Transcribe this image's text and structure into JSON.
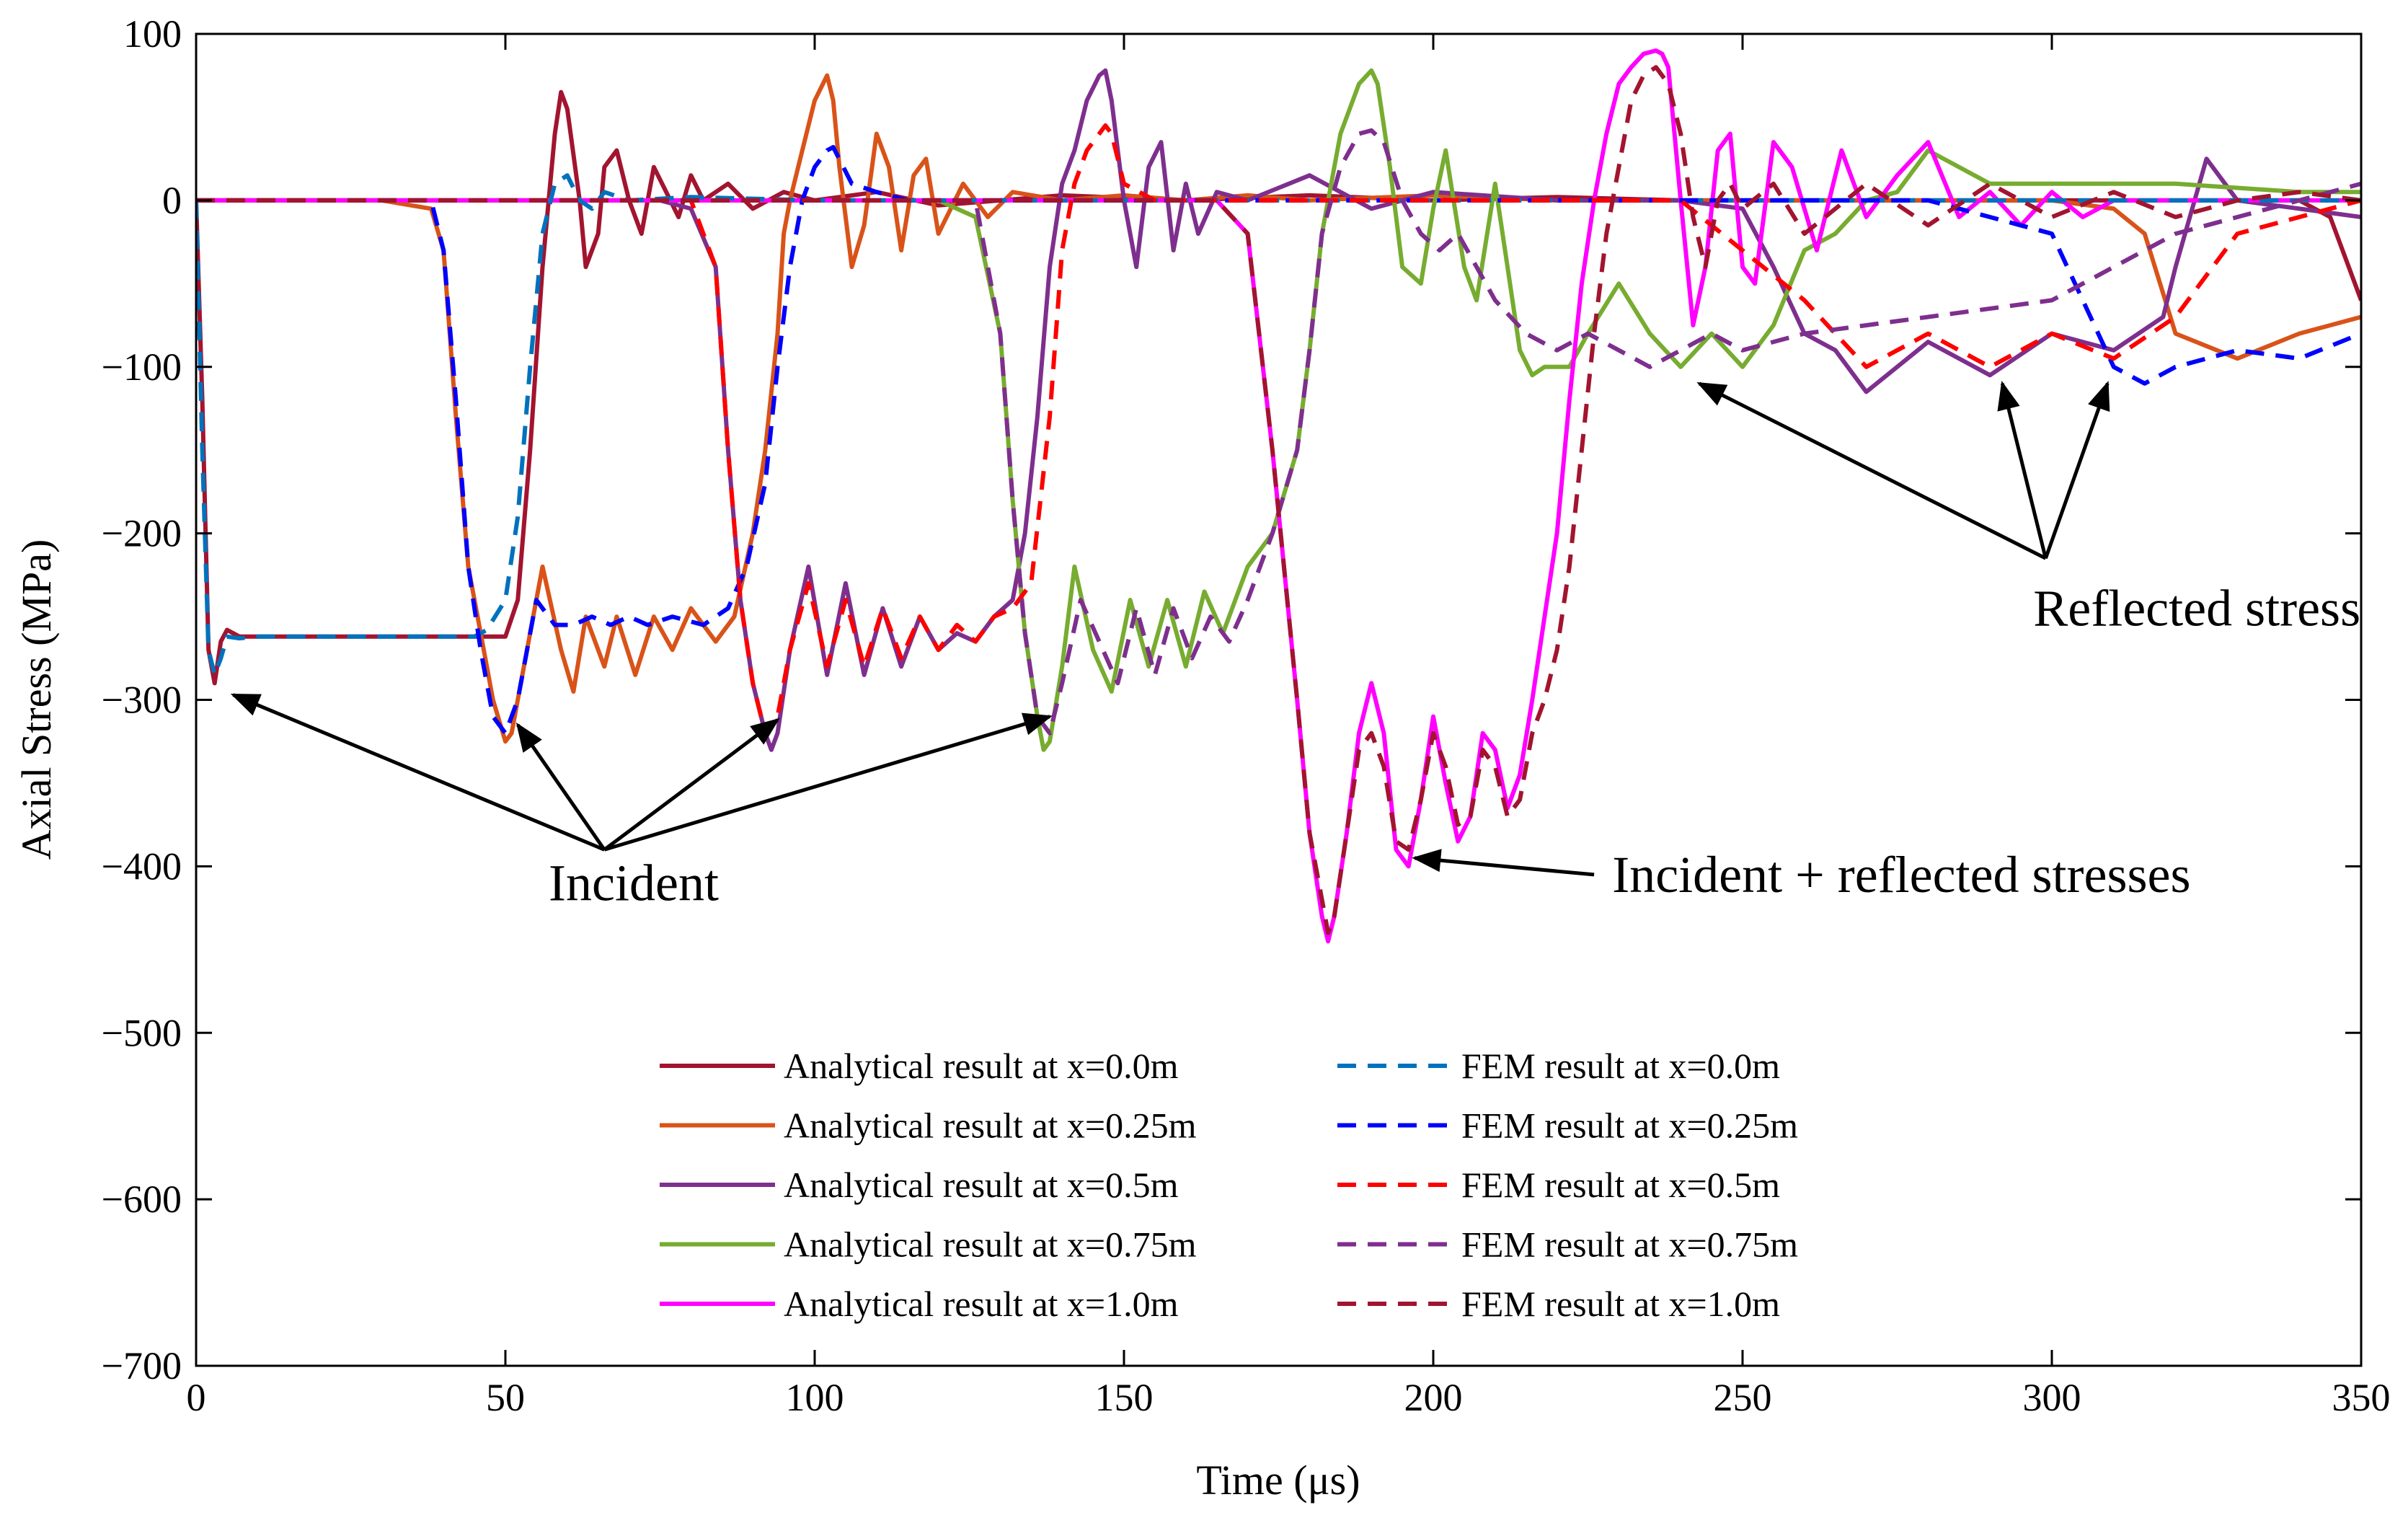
{
  "chart_data": {
    "type": "line",
    "title": "",
    "xlabel": "Time (μs)",
    "ylabel": "Axial Stress (MPa)",
    "xlim": [
      0,
      350
    ],
    "ylim": [
      -700,
      100
    ],
    "xticks": [
      0,
      50,
      100,
      150,
      200,
      250,
      300,
      350
    ],
    "yticks": [
      100,
      0,
      -100,
      -200,
      -300,
      -400,
      -500,
      -600,
      -700
    ],
    "xtick_labels": [
      "0",
      "50",
      "100",
      "150",
      "200",
      "250",
      "300",
      "350"
    ],
    "ytick_labels": [
      "100",
      "0",
      "−100",
      "−200",
      "−300",
      "−400",
      "−500",
      "−600",
      "−700"
    ],
    "grid": false,
    "legend_position": "bottom-center",
    "series": [
      {
        "name": "Analytical result at x=0.0m",
        "color": "#a2142f",
        "dash": "solid",
        "x": [
          0,
          1,
          2,
          3,
          4,
          5,
          7,
          10,
          15,
          20,
          25,
          30,
          35,
          40,
          45,
          47,
          50,
          52,
          54,
          56,
          58,
          59,
          60,
          62,
          63,
          65,
          66,
          68,
          70,
          72,
          74,
          76,
          78,
          80,
          82,
          86,
          90,
          95,
          100,
          110,
          120,
          140,
          160,
          180,
          200,
          220,
          240,
          260,
          280,
          300,
          320,
          340,
          345,
          350
        ],
        "y": [
          0,
          -120,
          -270,
          -290,
          -265,
          -258,
          -262,
          -262,
          -262,
          -262,
          -262,
          -262,
          -262,
          -262,
          -262,
          -262,
          -262,
          -240,
          -150,
          -40,
          40,
          65,
          55,
          0,
          -40,
          -20,
          20,
          30,
          0,
          -20,
          20,
          5,
          -10,
          15,
          0,
          10,
          -5,
          5,
          0,
          5,
          -3,
          3,
          0,
          3,
          0,
          2,
          0,
          0,
          0,
          0,
          0,
          0,
          -10,
          -60
        ]
      },
      {
        "name": "Analytical result at x=0.25m",
        "color": "#d95319",
        "dash": "solid",
        "x": [
          0,
          30,
          38,
          40,
          42,
          44,
          46,
          48,
          50,
          51,
          53,
          56,
          59,
          61,
          63,
          66,
          68,
          71,
          74,
          77,
          80,
          84,
          87,
          90,
          92,
          94,
          95,
          96,
          98,
          100,
          102,
          103,
          104,
          106,
          108,
          110,
          112,
          114,
          116,
          118,
          120,
          124,
          128,
          132,
          140,
          150,
          160,
          170,
          180,
          200,
          220,
          240,
          260,
          280,
          300,
          310,
          315,
          320,
          330,
          340,
          350
        ],
        "y": [
          0,
          0,
          -5,
          -30,
          -130,
          -220,
          -260,
          -300,
          -325,
          -320,
          -280,
          -220,
          -270,
          -295,
          -250,
          -280,
          -250,
          -285,
          -250,
          -270,
          -245,
          -265,
          -250,
          -200,
          -150,
          -80,
          -20,
          0,
          30,
          60,
          75,
          60,
          20,
          -40,
          -15,
          40,
          20,
          -30,
          15,
          25,
          -20,
          10,
          -10,
          5,
          0,
          3,
          0,
          3,
          0,
          3,
          0,
          0,
          0,
          0,
          0,
          -5,
          -20,
          -80,
          -95,
          -80,
          -70
        ]
      },
      {
        "name": "Analytical result at x=0.5m",
        "color": "#7e2f8e",
        "dash": "solid",
        "x": [
          0,
          75,
          80,
          84,
          86,
          88,
          90,
          92,
          93,
          94,
          96,
          99,
          102,
          105,
          108,
          111,
          114,
          117,
          120,
          123,
          126,
          129,
          132,
          134,
          136,
          138,
          140,
          142,
          144,
          146,
          147,
          148,
          150,
          152,
          154,
          156,
          158,
          160,
          162,
          165,
          170,
          180,
          190,
          200,
          220,
          240,
          250,
          255,
          260,
          265,
          270,
          280,
          290,
          300,
          310,
          318,
          320,
          325,
          330,
          340,
          350
        ],
        "y": [
          0,
          0,
          -5,
          -40,
          -150,
          -240,
          -290,
          -320,
          -330,
          -320,
          -270,
          -220,
          -285,
          -230,
          -285,
          -245,
          -280,
          -250,
          -270,
          -260,
          -265,
          -250,
          -240,
          -200,
          -130,
          -40,
          10,
          30,
          60,
          75,
          78,
          60,
          0,
          -40,
          20,
          35,
          -30,
          10,
          -20,
          5,
          0,
          15,
          -5,
          5,
          0,
          0,
          -5,
          -40,
          -80,
          -90,
          -115,
          -85,
          -105,
          -80,
          -90,
          -70,
          -40,
          25,
          0,
          -5,
          -10
        ]
      },
      {
        "name": "Analytical result at x=0.75m",
        "color": "#77ac30",
        "dash": "solid",
        "x": [
          0,
          120,
          126,
          130,
          132,
          134,
          136,
          137,
          138,
          140,
          142,
          145,
          148,
          151,
          154,
          157,
          160,
          163,
          166,
          170,
          174,
          178,
          180,
          182,
          185,
          188,
          190,
          191,
          193,
          195,
          198,
          200,
          202,
          205,
          207,
          210,
          212,
          214,
          216,
          218,
          222,
          225,
          230,
          235,
          240,
          245,
          250,
          255,
          260,
          265,
          270,
          275,
          280,
          290,
          300,
          320,
          340,
          350
        ],
        "y": [
          0,
          0,
          -10,
          -80,
          -180,
          -260,
          -310,
          -330,
          -325,
          -280,
          -220,
          -270,
          -295,
          -240,
          -280,
          -240,
          -280,
          -235,
          -260,
          -220,
          -200,
          -150,
          -90,
          -20,
          40,
          70,
          78,
          70,
          20,
          -40,
          -50,
          -5,
          30,
          -40,
          -60,
          10,
          -40,
          -90,
          -105,
          -100,
          -100,
          -80,
          -50,
          -80,
          -100,
          -80,
          -100,
          -75,
          -30,
          -20,
          0,
          5,
          30,
          10,
          10,
          10,
          5,
          5
        ]
      },
      {
        "name": "Analytical result at x=1.0m",
        "color": "#ff00ff",
        "dash": "solid",
        "x": [
          0,
          165,
          170,
          174,
          178,
          180,
          182,
          183,
          184,
          186,
          188,
          190,
          192,
          194,
          196,
          198,
          200,
          202,
          204,
          206,
          208,
          210,
          212,
          214,
          216,
          218,
          220,
          222,
          224,
          226,
          228,
          230,
          232,
          234,
          236,
          237,
          238,
          240,
          242,
          244,
          246,
          248,
          250,
          252,
          255,
          258,
          262,
          266,
          270,
          275,
          280,
          285,
          290,
          295,
          300,
          305,
          310,
          320,
          330,
          340,
          350
        ],
        "y": [
          0,
          0,
          -20,
          -150,
          -300,
          -380,
          -430,
          -445,
          -430,
          -380,
          -320,
          -290,
          -320,
          -390,
          -400,
          -360,
          -310,
          -350,
          -385,
          -370,
          -320,
          -330,
          -365,
          -345,
          -300,
          -250,
          -200,
          -120,
          -50,
          0,
          40,
          70,
          80,
          88,
          90,
          88,
          80,
          0,
          -75,
          -40,
          30,
          40,
          -40,
          -50,
          35,
          20,
          -30,
          30,
          -10,
          15,
          35,
          -10,
          5,
          -15,
          5,
          -10,
          0,
          0,
          0,
          0,
          0
        ]
      },
      {
        "name": "FEM result at x=0.0m",
        "color": "#0072bd",
        "dash": "dashed",
        "x": [
          0,
          1,
          2,
          3,
          4,
          5,
          7,
          10,
          15,
          20,
          25,
          30,
          35,
          40,
          45,
          47,
          50,
          52,
          54,
          56,
          58,
          60,
          62,
          64,
          66,
          70,
          80,
          100,
          150,
          200,
          250,
          300,
          350
        ],
        "y": [
          0,
          -150,
          -270,
          -285,
          -275,
          -262,
          -263,
          -262,
          -262,
          -262,
          -262,
          -262,
          -262,
          -262,
          -262,
          -258,
          -240,
          -190,
          -100,
          -20,
          10,
          15,
          0,
          -5,
          5,
          0,
          2,
          0,
          0,
          0,
          0,
          0,
          0
        ]
      },
      {
        "name": "FEM result at x=0.25m",
        "color": "#0000ff",
        "dash": "dashed",
        "x": [
          0,
          38,
          40,
          42,
          44,
          46,
          48,
          50,
          52,
          55,
          58,
          61,
          64,
          67,
          70,
          73,
          77,
          82,
          86,
          89,
          92,
          94,
          96,
          98,
          100,
          102,
          103,
          106,
          110,
          115,
          130,
          150,
          200,
          250,
          280,
          300,
          305,
          310,
          315,
          320,
          330,
          340,
          350
        ],
        "y": [
          0,
          0,
          -30,
          -120,
          -220,
          -270,
          -310,
          -320,
          -300,
          -240,
          -255,
          -255,
          -250,
          -255,
          -250,
          -255,
          -250,
          -255,
          -245,
          -220,
          -170,
          -100,
          -40,
          0,
          20,
          30,
          32,
          10,
          5,
          0,
          0,
          0,
          0,
          0,
          0,
          -20,
          -60,
          -100,
          -110,
          -100,
          -90,
          -95,
          -80
        ]
      },
      {
        "name": "FEM result at x=0.5m",
        "color": "#ff0000",
        "dash": "dashed",
        "x": [
          0,
          80,
          84,
          86,
          88,
          90,
          92,
          94,
          96,
          99,
          102,
          105,
          108,
          111,
          114,
          117,
          120,
          123,
          126,
          129,
          132,
          135,
          138,
          140,
          142,
          144,
          146,
          147,
          148,
          150,
          155,
          160,
          200,
          240,
          260,
          270,
          280,
          290,
          300,
          310,
          320,
          330,
          350
        ],
        "y": [
          0,
          0,
          -40,
          -150,
          -240,
          -290,
          -320,
          -310,
          -270,
          -230,
          -280,
          -240,
          -280,
          -245,
          -275,
          -250,
          -270,
          -255,
          -265,
          -250,
          -245,
          -230,
          -130,
          -30,
          10,
          30,
          40,
          45,
          40,
          10,
          0,
          0,
          0,
          0,
          -60,
          -100,
          -80,
          -100,
          -80,
          -95,
          -70,
          -20,
          0
        ]
      },
      {
        "name": "FEM result at x=0.75m",
        "color": "#7e2f8e",
        "dash": "dashed",
        "x": [
          0,
          126,
          130,
          132,
          134,
          136,
          138,
          140,
          143,
          146,
          149,
          152,
          155,
          158,
          161,
          164,
          167,
          170,
          174,
          178,
          180,
          182,
          185,
          188,
          190,
          192,
          195,
          198,
          201,
          204,
          207,
          210,
          215,
          220,
          225,
          230,
          235,
          240,
          245,
          250,
          260,
          280,
          300,
          320,
          340,
          350
        ],
        "y": [
          0,
          0,
          -80,
          -180,
          -260,
          -310,
          -320,
          -290,
          -240,
          -265,
          -290,
          -245,
          -285,
          -245,
          -275,
          -250,
          -265,
          -240,
          -200,
          -150,
          -90,
          -20,
          20,
          40,
          42,
          35,
          0,
          -20,
          -30,
          -20,
          -40,
          -60,
          -80,
          -90,
          -80,
          -90,
          -100,
          -90,
          -80,
          -90,
          -80,
          -70,
          -60,
          -20,
          0,
          10
        ]
      },
      {
        "name": "FEM result at x=1.0m",
        "color": "#a2142f",
        "dash": "dashed",
        "x": [
          0,
          165,
          170,
          174,
          178,
          180,
          182,
          183,
          184,
          186,
          188,
          190,
          192,
          194,
          196,
          198,
          200,
          202,
          204,
          206,
          208,
          210,
          212,
          214,
          216,
          218,
          220,
          222,
          224,
          226,
          228,
          230,
          232,
          234,
          236,
          238,
          240,
          242,
          244,
          246,
          248,
          250,
          255,
          260,
          270,
          280,
          290,
          300,
          310,
          320,
          330,
          340,
          350
        ],
        "y": [
          0,
          0,
          -20,
          -150,
          -300,
          -380,
          -420,
          -440,
          -430,
          -380,
          -330,
          -320,
          -340,
          -385,
          -390,
          -360,
          -320,
          -340,
          -375,
          -370,
          -330,
          -340,
          -370,
          -360,
          -320,
          -300,
          -270,
          -220,
          -150,
          -80,
          -20,
          20,
          60,
          75,
          80,
          70,
          40,
          -10,
          -40,
          0,
          10,
          -5,
          10,
          -20,
          10,
          -15,
          10,
          -10,
          5,
          -10,
          0,
          5,
          0
        ]
      }
    ],
    "legend_columns": [
      [
        "Analytical result at x=0.0m",
        "Analytical result at x=0.25m",
        "Analytical result at x=0.5m",
        "Analytical result at x=0.75m",
        "Analytical result at x=1.0m"
      ],
      [
        "FEM result at x=0.0m",
        "FEM result at x=0.25m",
        "FEM result at x=0.5m",
        "FEM result at x=0.75m",
        "FEM result at x=1.0m"
      ]
    ],
    "annotations": [
      {
        "text": "Incident",
        "label_x": 57,
        "label_y": -410,
        "arrow_from": [
          66,
          -390
        ],
        "arrow_targets": [
          [
            6,
            -297
          ],
          [
            52,
            -315
          ],
          [
            94,
            -312
          ],
          [
            138,
            -310
          ]
        ]
      },
      {
        "text": "Incident + reflected stresses",
        "label_x": 228,
        "label_y": -405,
        "arrow_from": [
          226,
          -405
        ],
        "arrow_targets": [
          [
            197,
            -395
          ]
        ]
      },
      {
        "text": "Reflected stress",
        "label_x": 297,
        "label_y": -245,
        "arrow_from": [
          299,
          -215
        ],
        "arrow_targets": [
          [
            243,
            -110
          ],
          [
            292,
            -110
          ],
          [
            309,
            -110
          ]
        ]
      }
    ]
  }
}
